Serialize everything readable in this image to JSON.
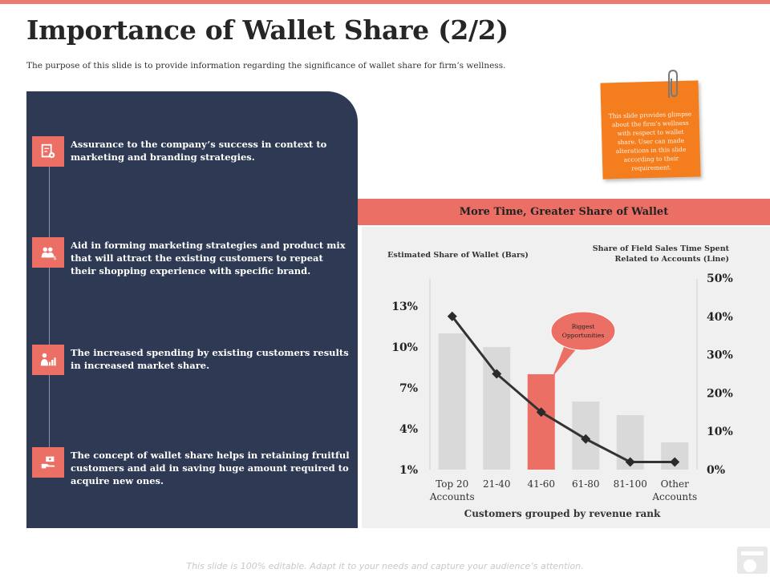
{
  "slide": {
    "title": "Importance of Wallet Share (2/2)",
    "subtitle": "The purpose of this slide is to provide information regarding the significance of wallet share for firm’s wellness.",
    "footer": "This slide is 100% editable. Adapt it to your needs and capture your audience’s attention."
  },
  "points": [
    {
      "text": "Assurance to the company’s success in context to marketing and branding strategies.",
      "icon": "document-gear-icon"
    },
    {
      "text": "Aid in forming marketing strategies and product mix that will attract the existing customers to repeat their shopping experience with specific brand.",
      "icon": "people-dollar-icon"
    },
    {
      "text": "The increased spending by existing customers results in increased market share.",
      "icon": "person-growth-chart-icon"
    },
    {
      "text": "The concept of wallet share helps in retaining fruitful customers and aid in saving huge amount required to acquire new ones.",
      "icon": "hand-money-icon"
    }
  ],
  "note": {
    "text": "This slide provides glimpse about the firm’s wellness with respect to wallet share. User can made alterations in this slide according to their requirement."
  },
  "chart_header": "More Time, Greater Share of Wallet",
  "chart_data": {
    "type": "bar",
    "title": "More Time, Greater Share of Wallet",
    "categories": [
      "Top 20\nAccounts",
      "21-40",
      "41-60",
      "61-80",
      "81-100",
      "Other\nAccounts"
    ],
    "xlabel": "Customers grouped by revenue rank",
    "ylabel_left": "Estimated Share of Wallet (Bars)",
    "ylabel_right": "Share of Field Sales Time Spent Related to Accounts (Line)",
    "y_left_ticks": [
      "1%",
      "4%",
      "7%",
      "10%",
      "13%"
    ],
    "y_right_ticks": [
      "0%",
      "10%",
      "20%",
      "30%",
      "40%",
      "50%"
    ],
    "ylim_left": [
      1,
      14
    ],
    "ylim_right": [
      0,
      50
    ],
    "series": [
      {
        "name": "Estimated Share of Wallet (Bars)",
        "type": "bar",
        "values": [
          11,
          10,
          8,
          6,
          5,
          3
        ]
      },
      {
        "name": "Share of Field Sales Time Spent Related to Accounts (Line)",
        "type": "line",
        "values": [
          40,
          25,
          15,
          8,
          2,
          2
        ]
      }
    ],
    "highlight_index": 2,
    "annotation": "Biggest\nOpportunities",
    "colors": {
      "bar": "#d9d9d9",
      "highlight": "#ec6f66",
      "line": "#333333",
      "callout": "#ec6f66"
    }
  }
}
